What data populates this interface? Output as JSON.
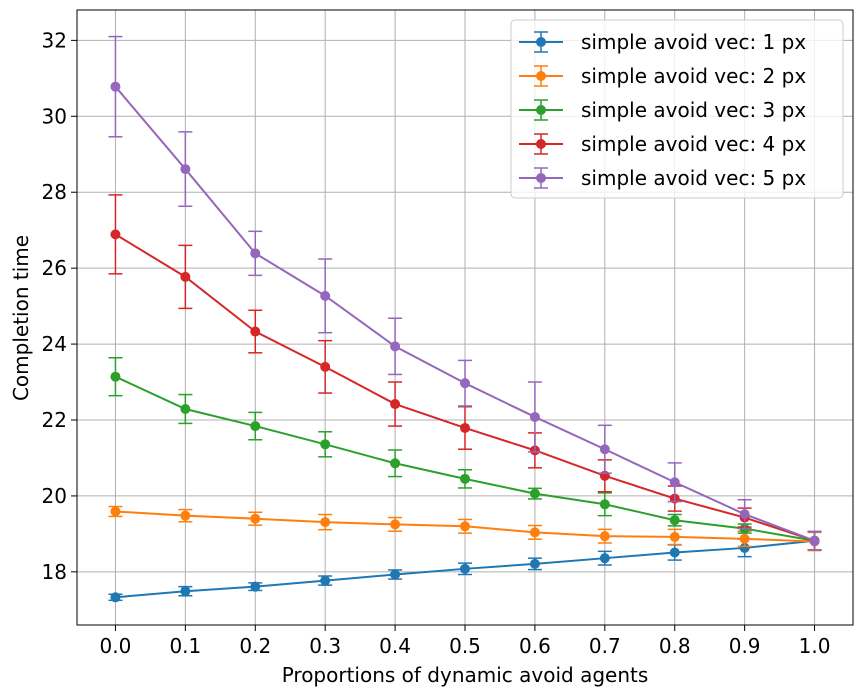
{
  "chart_data": {
    "type": "line",
    "title": "",
    "xlabel": "Proportions of dynamic avoid agents",
    "ylabel": "Completion time",
    "x": [
      0.0,
      0.1,
      0.2,
      0.3,
      0.4,
      0.5,
      0.6,
      0.7,
      0.8,
      0.9,
      1.0
    ],
    "x_tick_labels": [
      "0.0",
      "0.1",
      "0.2",
      "0.3",
      "0.4",
      "0.5",
      "0.6",
      "0.7",
      "0.8",
      "0.9",
      "1.0"
    ],
    "xlim": [
      -0.055,
      1.055
    ],
    "y_ticks": [
      18,
      20,
      22,
      24,
      26,
      28,
      30,
      32
    ],
    "y_tick_labels": [
      "18",
      "20",
      "22",
      "24",
      "26",
      "28",
      "30",
      "32"
    ],
    "ylim": [
      16.6,
      32.8
    ],
    "grid": true,
    "legend_position": "top-right",
    "series": [
      {
        "name": "simple avoid vec: 1 px",
        "color": "#1f77b4",
        "values": [
          17.33,
          17.49,
          17.61,
          17.77,
          17.93,
          18.08,
          18.21,
          18.36,
          18.51,
          18.63,
          18.82
        ],
        "errors": [
          0.08,
          0.12,
          0.1,
          0.12,
          0.12,
          0.15,
          0.15,
          0.18,
          0.2,
          0.23,
          0.24
        ]
      },
      {
        "name": "simple avoid vec: 2 px",
        "color": "#ff7f0e",
        "values": [
          19.59,
          19.48,
          19.4,
          19.31,
          19.25,
          19.2,
          19.04,
          18.94,
          18.92,
          18.87,
          18.8
        ],
        "errors": [
          0.13,
          0.16,
          0.17,
          0.2,
          0.18,
          0.18,
          0.18,
          0.18,
          0.2,
          0.2,
          0.24
        ]
      },
      {
        "name": "simple avoid vec: 3 px",
        "color": "#2ca02c",
        "values": [
          23.14,
          22.29,
          21.84,
          21.36,
          20.86,
          20.45,
          20.06,
          19.78,
          19.36,
          19.14,
          18.82
        ],
        "errors": [
          0.5,
          0.38,
          0.36,
          0.33,
          0.35,
          0.24,
          0.14,
          0.3,
          0.15,
          0.12,
          0.24
        ]
      },
      {
        "name": "simple avoid vec: 4 px",
        "color": "#d62728",
        "values": [
          26.89,
          25.77,
          24.33,
          23.4,
          22.42,
          21.79,
          21.2,
          20.53,
          19.93,
          19.43,
          18.82
        ],
        "errors": [
          1.04,
          0.83,
          0.56,
          0.69,
          0.58,
          0.56,
          0.46,
          0.42,
          0.33,
          0.25,
          0.24
        ]
      },
      {
        "name": "simple avoid vec: 5 px",
        "color": "#9467bd",
        "values": [
          30.78,
          28.61,
          26.39,
          25.27,
          23.94,
          22.97,
          22.08,
          21.23,
          20.36,
          19.52,
          18.82
        ],
        "errors": [
          1.32,
          0.98,
          0.58,
          0.97,
          0.74,
          0.6,
          0.92,
          0.63,
          0.51,
          0.38,
          0.24
        ]
      }
    ]
  }
}
